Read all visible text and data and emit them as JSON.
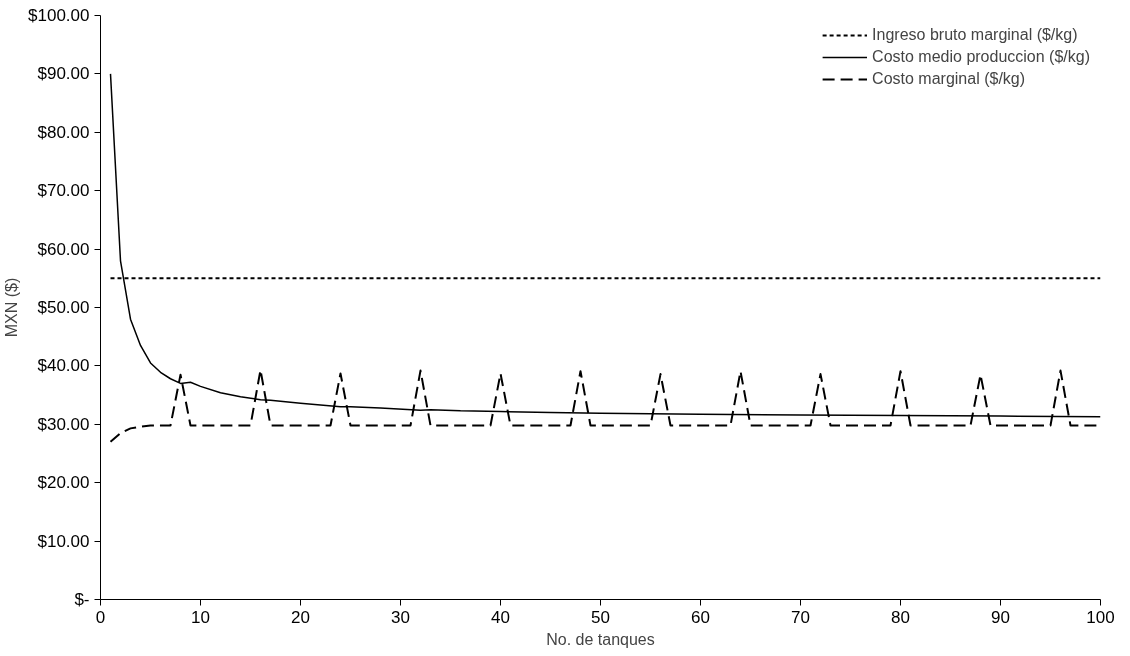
{
  "chart_data": {
    "type": "line",
    "xlabel": "No. de tanques",
    "ylabel": "MXN ($)",
    "xlim": [
      0,
      100
    ],
    "ylim": [
      0,
      100
    ],
    "xticks": [
      0,
      10,
      20,
      30,
      40,
      50,
      60,
      70,
      80,
      90,
      100
    ],
    "yticks": [
      {
        "value": 0,
        "label": "$-"
      },
      {
        "value": 10,
        "label": "$10.00"
      },
      {
        "value": 20,
        "label": "$20.00"
      },
      {
        "value": 30,
        "label": "$30.00"
      },
      {
        "value": 40,
        "label": "$40.00"
      },
      {
        "value": 50,
        "label": "$50.00"
      },
      {
        "value": 60,
        "label": "$60.00"
      },
      {
        "value": 70,
        "label": "$70.00"
      },
      {
        "value": 80,
        "label": "$80.00"
      },
      {
        "value": 90,
        "label": "$90.00"
      },
      {
        "value": 100,
        "label": "$100.00"
      }
    ],
    "grid": false,
    "legend": "top right",
    "marker": "none",
    "series": [
      {
        "name": "Ingreso bruto marginal ($/kg)",
        "color": "#000000",
        "line_style": "dotted",
        "x": [
          1,
          100
        ],
        "values": [
          55,
          55
        ]
      },
      {
        "name": "Costo medio produccion ($/kg)",
        "color": "#000000",
        "line_style": "solid",
        "x": [
          1,
          2,
          3,
          4,
          5,
          6,
          7,
          8,
          9,
          10,
          12,
          14,
          16,
          17,
          20,
          24,
          25,
          28,
          32,
          33,
          36,
          40,
          45,
          50,
          60,
          70,
          80,
          90,
          100
        ],
        "values": [
          90,
          58,
          48,
          43.5,
          40.5,
          38.9,
          37.8,
          37.0,
          37.2,
          36.5,
          35.4,
          34.7,
          34.2,
          34.1,
          33.6,
          33.0,
          33.0,
          32.8,
          32.4,
          32.5,
          32.3,
          32.2,
          32.0,
          31.9,
          31.7,
          31.6,
          31.5,
          31.4,
          31.3
        ]
      },
      {
        "name": "Costo marginal ($/kg)",
        "color": "#000000",
        "line_style": "dashed",
        "x": [
          1,
          2,
          3,
          4,
          5,
          6,
          7,
          8,
          9,
          10,
          11,
          12,
          13,
          14,
          15,
          16,
          17,
          18,
          19,
          20,
          21,
          22,
          23,
          24,
          25,
          26,
          27,
          28,
          29,
          30,
          31,
          32,
          33,
          34,
          35,
          36,
          37,
          38,
          39,
          40,
          41,
          42,
          43,
          44,
          45,
          46,
          47,
          48,
          49,
          50,
          51,
          52,
          53,
          54,
          55,
          56,
          57,
          58,
          59,
          60,
          61,
          62,
          63,
          64,
          65,
          66,
          67,
          68,
          69,
          70,
          71,
          72,
          73,
          74,
          75,
          76,
          77,
          78,
          79,
          80,
          81,
          82,
          83,
          84,
          85,
          86,
          87,
          88,
          89,
          90,
          91,
          92,
          93,
          94,
          95,
          96,
          97,
          98,
          99,
          100
        ],
        "values": [
          27.0,
          28.5,
          29.3,
          29.6,
          29.8,
          29.8,
          29.8,
          38.5,
          29.8,
          29.8,
          29.8,
          29.8,
          29.8,
          29.8,
          29.8,
          39.3,
          29.8,
          29.8,
          29.8,
          29.8,
          29.8,
          29.8,
          29.8,
          38.7,
          29.8,
          29.8,
          29.8,
          29.8,
          29.8,
          29.8,
          29.8,
          39.2,
          29.8,
          29.8,
          29.8,
          29.8,
          29.8,
          29.8,
          29.8,
          38.7,
          29.8,
          29.8,
          29.8,
          29.8,
          29.8,
          29.8,
          29.8,
          39.1,
          29.8,
          29.8,
          29.8,
          29.8,
          29.8,
          29.8,
          29.8,
          38.6,
          29.8,
          29.8,
          29.8,
          29.8,
          29.8,
          29.8,
          29.8,
          39.1,
          29.8,
          29.8,
          29.8,
          29.8,
          29.8,
          29.8,
          29.8,
          38.6,
          29.8,
          29.8,
          29.8,
          29.8,
          29.8,
          29.8,
          29.8,
          39.1,
          29.8,
          29.8,
          29.8,
          29.8,
          29.8,
          29.8,
          29.8,
          38.5,
          29.8,
          29.8,
          29.8,
          29.8,
          29.8,
          29.8,
          29.8,
          39.2,
          29.8,
          29.8,
          29.8,
          29.8
        ]
      }
    ]
  }
}
